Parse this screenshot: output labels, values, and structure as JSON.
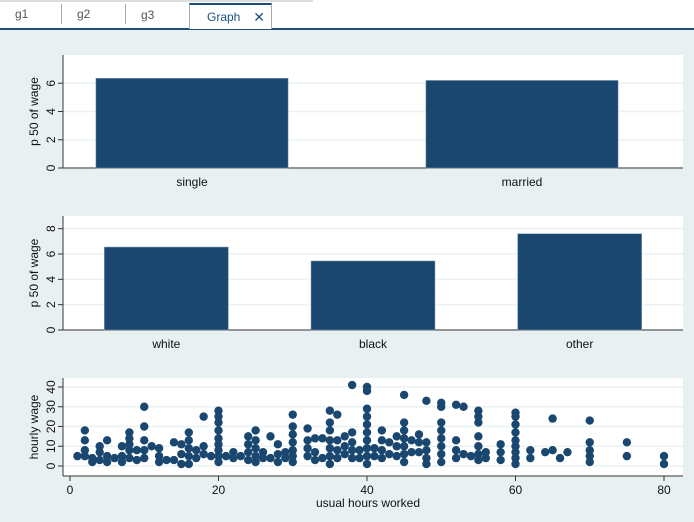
{
  "tabs": [
    {
      "label": "g1"
    },
    {
      "label": "g2"
    },
    {
      "label": "g3"
    },
    {
      "label": "Graph",
      "close_icon": "close-icon"
    }
  ],
  "colors": {
    "bar": "#1a476f",
    "accent": "#1e4f7a",
    "panel_bg": "#e8f0f2",
    "grid": "#eaf2f3"
  },
  "chart_data": [
    {
      "type": "bar",
      "ylabel": "p 50 of wage",
      "categories": [
        "single",
        "married"
      ],
      "values": [
        6.35,
        6.2
      ],
      "ylim": [
        0,
        8
      ],
      "yticks": [
        0,
        2,
        4,
        6
      ]
    },
    {
      "type": "bar",
      "ylabel": "p 50 of wage",
      "categories": [
        "white",
        "black",
        "other"
      ],
      "values": [
        6.55,
        5.45,
        7.6
      ],
      "ylim": [
        0,
        9
      ],
      "yticks": [
        0,
        2,
        4,
        6,
        8
      ]
    },
    {
      "type": "scatter",
      "xlabel": "usual hours worked",
      "ylabel": "hourly wage",
      "xlim": [
        -2,
        82
      ],
      "ylim": [
        -3,
        45
      ],
      "xticks": [
        0,
        20,
        40,
        60,
        80
      ],
      "yticks": [
        0,
        10,
        20,
        30,
        40
      ],
      "points": [
        [
          1,
          5
        ],
        [
          2,
          18
        ],
        [
          2,
          13
        ],
        [
          2,
          8
        ],
        [
          2,
          5
        ],
        [
          3,
          2
        ],
        [
          3,
          4
        ],
        [
          4,
          10
        ],
        [
          4,
          7
        ],
        [
          4,
          3
        ],
        [
          5,
          13
        ],
        [
          5,
          5
        ],
        [
          5,
          2
        ],
        [
          6,
          4
        ],
        [
          7,
          10
        ],
        [
          7,
          5
        ],
        [
          7,
          2
        ],
        [
          8,
          17
        ],
        [
          8,
          14
        ],
        [
          8,
          11
        ],
        [
          8,
          8
        ],
        [
          8,
          4
        ],
        [
          9,
          8
        ],
        [
          9,
          3
        ],
        [
          10,
          30
        ],
        [
          10,
          20
        ],
        [
          10,
          13
        ],
        [
          10,
          8
        ],
        [
          10,
          4
        ],
        [
          11,
          10
        ],
        [
          12,
          9
        ],
        [
          12,
          5
        ],
        [
          12,
          2
        ],
        [
          13,
          3
        ],
        [
          14,
          12
        ],
        [
          14,
          3
        ],
        [
          15,
          11
        ],
        [
          15,
          6
        ],
        [
          15,
          1
        ],
        [
          16,
          17
        ],
        [
          16,
          13
        ],
        [
          16,
          9
        ],
        [
          16,
          5
        ],
        [
          16,
          1
        ],
        [
          17,
          8
        ],
        [
          17,
          4
        ],
        [
          18,
          25
        ],
        [
          18,
          10
        ],
        [
          18,
          6
        ],
        [
          19,
          5
        ],
        [
          20,
          28
        ],
        [
          20,
          25
        ],
        [
          20,
          22
        ],
        [
          20,
          18
        ],
        [
          20,
          14
        ],
        [
          20,
          11
        ],
        [
          20,
          8
        ],
        [
          20,
          5
        ],
        [
          20,
          2
        ],
        [
          21,
          5
        ],
        [
          22,
          7
        ],
        [
          22,
          4
        ],
        [
          23,
          5
        ],
        [
          24,
          15
        ],
        [
          24,
          11
        ],
        [
          24,
          7
        ],
        [
          24,
          3
        ],
        [
          25,
          18
        ],
        [
          25,
          13
        ],
        [
          25,
          9
        ],
        [
          25,
          5
        ],
        [
          25,
          2
        ],
        [
          26,
          7
        ],
        [
          26,
          4
        ],
        [
          27,
          15
        ],
        [
          27,
          4
        ],
        [
          28,
          11
        ],
        [
          28,
          6
        ],
        [
          28,
          2
        ],
        [
          29,
          7
        ],
        [
          29,
          4
        ],
        [
          30,
          26
        ],
        [
          30,
          20
        ],
        [
          30,
          16
        ],
        [
          30,
          12
        ],
        [
          30,
          8
        ],
        [
          30,
          5
        ],
        [
          30,
          2
        ],
        [
          32,
          19
        ],
        [
          32,
          13
        ],
        [
          32,
          9
        ],
        [
          32,
          5
        ],
        [
          33,
          14
        ],
        [
          33,
          7
        ],
        [
          33,
          3
        ],
        [
          34,
          14
        ],
        [
          34,
          4
        ],
        [
          35,
          28
        ],
        [
          35,
          22
        ],
        [
          35,
          18
        ],
        [
          35,
          13
        ],
        [
          35,
          9
        ],
        [
          35,
          5
        ],
        [
          35,
          1
        ],
        [
          36,
          26
        ],
        [
          36,
          13
        ],
        [
          36,
          8
        ],
        [
          36,
          4
        ],
        [
          37,
          15
        ],
        [
          37,
          10
        ],
        [
          37,
          6
        ],
        [
          38,
          41
        ],
        [
          38,
          17
        ],
        [
          38,
          12
        ],
        [
          38,
          8
        ],
        [
          38,
          4
        ],
        [
          39,
          8
        ],
        [
          39,
          4
        ],
        [
          40,
          40
        ],
        [
          40,
          38
        ],
        [
          40,
          29
        ],
        [
          40,
          25
        ],
        [
          40,
          21
        ],
        [
          40,
          17
        ],
        [
          40,
          13
        ],
        [
          40,
          9
        ],
        [
          40,
          5
        ],
        [
          40,
          1
        ],
        [
          41,
          9
        ],
        [
          41,
          5
        ],
        [
          42,
          18
        ],
        [
          42,
          13
        ],
        [
          42,
          8
        ],
        [
          42,
          4
        ],
        [
          43,
          12
        ],
        [
          43,
          6
        ],
        [
          44,
          15
        ],
        [
          44,
          10
        ],
        [
          44,
          5
        ],
        [
          45,
          36
        ],
        [
          45,
          22
        ],
        [
          45,
          18
        ],
        [
          45,
          14
        ],
        [
          45,
          10
        ],
        [
          45,
          6
        ],
        [
          45,
          2
        ],
        [
          46,
          13
        ],
        [
          46,
          7
        ],
        [
          47,
          16
        ],
        [
          47,
          12
        ],
        [
          47,
          7
        ],
        [
          48,
          33
        ],
        [
          48,
          12
        ],
        [
          48,
          8
        ],
        [
          48,
          4
        ],
        [
          48,
          1
        ],
        [
          50,
          32
        ],
        [
          50,
          30
        ],
        [
          50,
          22
        ],
        [
          50,
          18
        ],
        [
          50,
          14
        ],
        [
          50,
          10
        ],
        [
          50,
          6
        ],
        [
          50,
          2
        ],
        [
          52,
          31
        ],
        [
          52,
          13
        ],
        [
          52,
          8
        ],
        [
          52,
          4
        ],
        [
          53,
          30
        ],
        [
          53,
          6
        ],
        [
          54,
          5
        ],
        [
          55,
          28
        ],
        [
          55,
          25
        ],
        [
          55,
          22
        ],
        [
          55,
          15
        ],
        [
          55,
          10
        ],
        [
          55,
          6
        ],
        [
          55,
          3
        ],
        [
          56,
          7
        ],
        [
          56,
          4
        ],
        [
          58,
          11
        ],
        [
          58,
          7
        ],
        [
          58,
          3
        ],
        [
          60,
          27
        ],
        [
          60,
          25
        ],
        [
          60,
          21
        ],
        [
          60,
          17
        ],
        [
          60,
          13
        ],
        [
          60,
          10
        ],
        [
          60,
          7
        ],
        [
          60,
          4
        ],
        [
          60,
          1
        ],
        [
          62,
          8
        ],
        [
          62,
          4
        ],
        [
          64,
          7
        ],
        [
          65,
          24
        ],
        [
          65,
          8
        ],
        [
          66,
          4
        ],
        [
          67,
          7
        ],
        [
          70,
          23
        ],
        [
          70,
          12
        ],
        [
          70,
          8
        ],
        [
          70,
          5
        ],
        [
          70,
          2
        ],
        [
          75,
          12
        ],
        [
          75,
          5
        ],
        [
          80,
          5
        ],
        [
          80,
          1
        ]
      ]
    }
  ]
}
